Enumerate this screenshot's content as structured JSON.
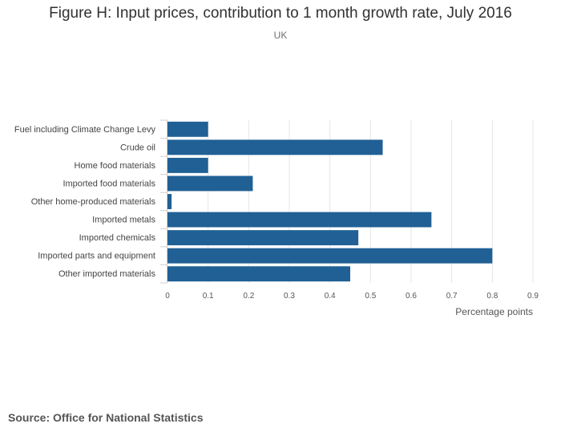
{
  "chart_data": {
    "type": "bar",
    "orientation": "horizontal",
    "title": "Figure H: Input prices, contribution to 1 month growth rate, July 2016",
    "subtitle": "UK",
    "xlabel": "Percentage points",
    "ylabel": "",
    "xlim": [
      0,
      0.9
    ],
    "xticks": [
      "0",
      "0.1",
      "0.2",
      "0.3",
      "0.4",
      "0.5",
      "0.6",
      "0.7",
      "0.8",
      "0.9"
    ],
    "grid": true,
    "categories": [
      "Fuel including Climate Change Levy",
      "Crude oil",
      "Home food materials",
      "Imported food materials",
      "Other home-produced materials",
      "Imported metals",
      "Imported chemicals",
      "Imported parts and equipment",
      "Other imported materials"
    ],
    "values": [
      0.1,
      0.53,
      0.1,
      0.21,
      0.01,
      0.65,
      0.47,
      0.8,
      0.45
    ],
    "bar_color": "#206095"
  },
  "source": "Source: Office for National Statistics"
}
